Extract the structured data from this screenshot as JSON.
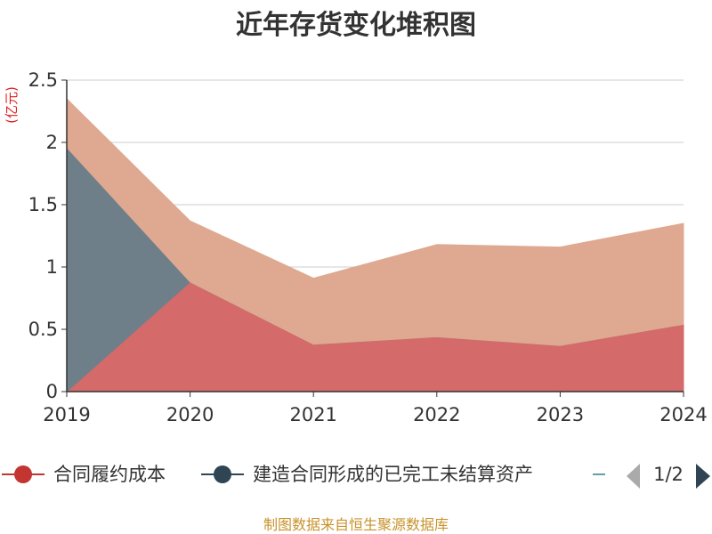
{
  "chart_data": {
    "type": "area",
    "title": "近年存货变化堆积图",
    "unit_label": "(亿元)",
    "x": [
      "2019",
      "2020",
      "2021",
      "2022",
      "2023",
      "2024"
    ],
    "ylim": [
      0,
      2.5
    ],
    "yticks": [
      "0",
      "0.5",
      "1",
      "1.5",
      "2",
      "2.5"
    ],
    "grid": true,
    "stacked": true,
    "series": [
      {
        "name": "合同履约成本",
        "values": [
          0,
          0.88,
          0.38,
          0.44,
          0.37,
          0.54
        ],
        "color": "#d46a6a"
      },
      {
        "name": "建造合同形成的已完工未结算资产",
        "values": [
          1.96,
          0,
          0,
          0,
          0,
          0
        ],
        "color": "#6e7f8a"
      },
      {
        "name": "",
        "values": [
          0.39,
          0.49,
          0.53,
          0.74,
          0.79,
          0.81
        ],
        "color": "#dfa890"
      }
    ],
    "legend": {
      "position": "bottom",
      "page": "1/2",
      "marker_colors": [
        "#c23531",
        "#2f4554",
        "#61a0a8"
      ]
    },
    "source": "制图数据来自恒生聚源数据库"
  }
}
